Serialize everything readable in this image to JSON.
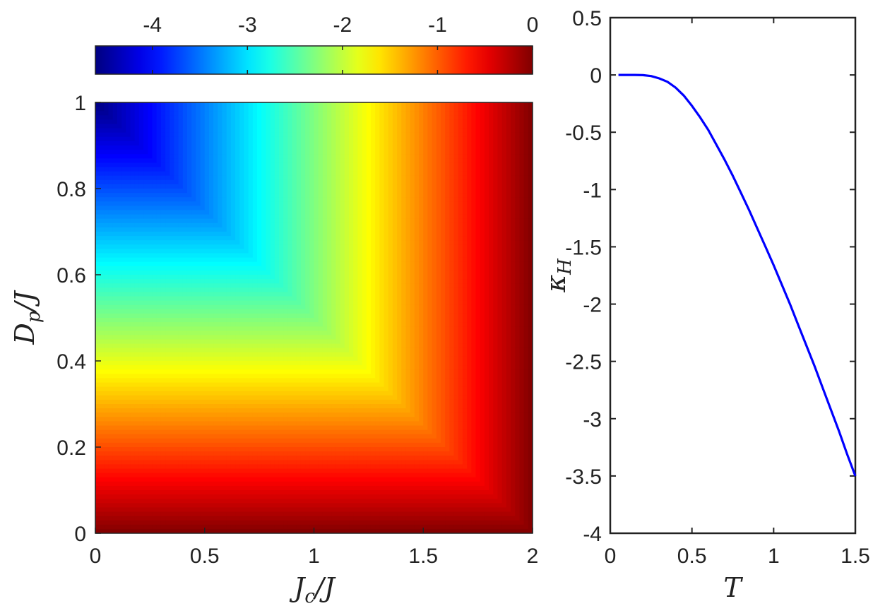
{
  "chart_data": [
    {
      "type": "heatmap",
      "title": "",
      "xlabel": "J_c/J",
      "ylabel": "D_p/J",
      "xlim": [
        0,
        2
      ],
      "ylim": [
        0,
        1
      ],
      "xticks": [
        0,
        0.5,
        1,
        1.5,
        2
      ],
      "xtick_labels": [
        "0",
        "0.5",
        "1",
        "1.5",
        "2"
      ],
      "yticks": [
        0,
        0.2,
        0.4,
        0.6,
        0.8,
        1
      ],
      "ytick_labels": [
        "0",
        "0.2",
        "0.4",
        "0.6",
        "0.8",
        "1"
      ],
      "colormap": "jet",
      "value_range": [
        -4.6,
        0
      ],
      "values_at_corners": {
        "x0_y0": 0,
        "x0_y1": -4.6,
        "x2_y0": 0,
        "x2_y1": 0
      },
      "grid": false,
      "colorbar": {
        "position": "top",
        "ticks": [
          -4,
          -3,
          -2,
          -1,
          0
        ],
        "tick_labels": [
          "-4",
          "-3",
          "-2",
          "-1",
          "0"
        ]
      }
    },
    {
      "type": "line",
      "title": "",
      "xlabel": "T",
      "ylabel": "κ_H",
      "xlim": [
        0,
        1.5
      ],
      "ylim": [
        -4,
        0.5
      ],
      "xticks": [
        0,
        0.5,
        1,
        1.5
      ],
      "xtick_labels": [
        "0",
        "0.5",
        "1",
        "1.5"
      ],
      "yticks": [
        0.5,
        0,
        -0.5,
        -1,
        -1.5,
        -2,
        -2.5,
        -3,
        -3.5,
        -4
      ],
      "ytick_labels": [
        "0.5",
        "0",
        "-0.5",
        "-1",
        "-1.5",
        "-2",
        "-2.5",
        "-3",
        "-3.5",
        "-4"
      ],
      "grid": false,
      "series": [
        {
          "color": "#0000ff",
          "x": [
            0.05,
            0.1,
            0.15,
            0.2,
            0.25,
            0.3,
            0.35,
            0.4,
            0.45,
            0.5,
            0.55,
            0.6,
            0.65,
            0.7,
            0.75,
            0.8,
            0.85,
            0.9,
            0.95,
            1.0,
            1.05,
            1.1,
            1.15,
            1.2,
            1.25,
            1.3,
            1.35,
            1.4,
            1.45,
            1.5
          ],
          "y": [
            0,
            0,
            0,
            -0.002,
            -0.01,
            -0.03,
            -0.06,
            -0.11,
            -0.18,
            -0.27,
            -0.37,
            -0.48,
            -0.61,
            -0.74,
            -0.88,
            -1.03,
            -1.18,
            -1.34,
            -1.5,
            -1.66,
            -1.83,
            -2.0,
            -2.18,
            -2.36,
            -2.54,
            -2.73,
            -2.92,
            -3.11,
            -3.31,
            -3.5
          ]
        }
      ]
    }
  ]
}
